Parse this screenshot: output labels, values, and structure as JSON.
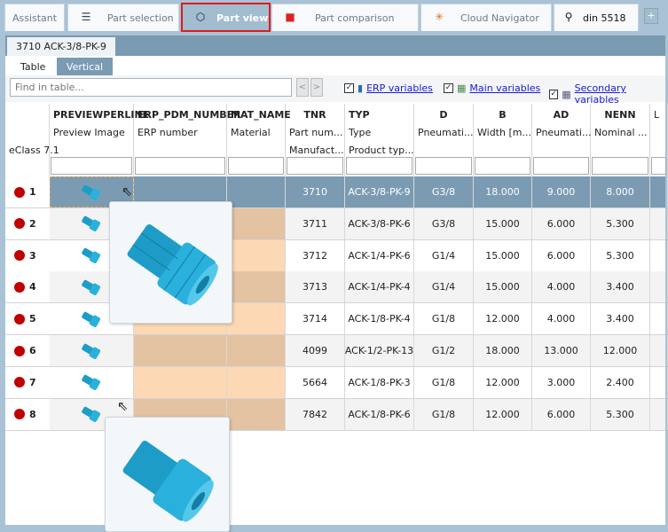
{
  "tabs": [
    {
      "label": "Assistant",
      "icon": "none"
    },
    {
      "label": "Part selection",
      "icon": "stack-icon"
    },
    {
      "label": "Part view",
      "icon": "cubes-icon",
      "active": true
    },
    {
      "label": "Part comparison",
      "icon": "compare-icon"
    },
    {
      "label": "Cloud Navigator",
      "icon": "network-icon"
    },
    {
      "label": "din 5518",
      "icon": "search-abc-icon"
    }
  ],
  "add_tab": "+",
  "part_tab": "3710 ACK-3/8-PK-9",
  "view_tabs": [
    "Table",
    "Vertical"
  ],
  "toolbar": {
    "find_placeholder": "Find in table...",
    "prev": "<",
    "next": ">",
    "erp": "ERP variables",
    "main": "Main variables",
    "secondary": "Secondary variables",
    "check": "✓"
  },
  "columns": [
    {
      "name": "",
      "desc": "",
      "desc2": "eClass 7.1"
    },
    {
      "name": "PREVIEWPERLINE",
      "desc": "Preview Image",
      "desc2": ""
    },
    {
      "name": "ERP_PDM_NUMBER",
      "desc": "ERP number",
      "desc2": ""
    },
    {
      "name": "MAT_NAME",
      "desc": "Material",
      "desc2": ""
    },
    {
      "name": "TNR",
      "desc": "Part num...",
      "desc2": "Manufact..."
    },
    {
      "name": "TYP",
      "desc": "Type",
      "desc2": "Product typ..."
    },
    {
      "name": "D",
      "desc": "Pneumati...",
      "desc2": ""
    },
    {
      "name": "B",
      "desc": "Width [m...",
      "desc2": ""
    },
    {
      "name": "AD",
      "desc": "Pneumati...",
      "desc2": ""
    },
    {
      "name": "NENN",
      "desc": "Nominal ...",
      "desc2": ""
    },
    {
      "name": "",
      "desc": "L",
      "desc2": ""
    }
  ],
  "rows": [
    {
      "n": "1",
      "tnr": "3710",
      "typ": "ACK-3/8-PK-9",
      "d": "G3/8",
      "b": "18.000",
      "ad": "9.000",
      "nenn": "8.000"
    },
    {
      "n": "2",
      "tnr": "3711",
      "typ": "ACK-3/8-PK-6",
      "d": "G3/8",
      "b": "15.000",
      "ad": "6.000",
      "nenn": "5.300"
    },
    {
      "n": "3",
      "tnr": "3712",
      "typ": "ACK-1/4-PK-6",
      "d": "G1/4",
      "b": "15.000",
      "ad": "6.000",
      "nenn": "5.300"
    },
    {
      "n": "4",
      "tnr": "3713",
      "typ": "ACK-1/4-PK-4",
      "d": "G1/4",
      "b": "15.000",
      "ad": "4.000",
      "nenn": "3.400"
    },
    {
      "n": "5",
      "tnr": "3714",
      "typ": "ACK-1/8-PK-4",
      "d": "G1/8",
      "b": "12.000",
      "ad": "4.000",
      "nenn": "3.400"
    },
    {
      "n": "6",
      "tnr": "4099",
      "typ": "ACK-1/2-PK-13",
      "d": "G1/2",
      "b": "18.000",
      "ad": "13.000",
      "nenn": "12.000"
    },
    {
      "n": "7",
      "tnr": "5664",
      "typ": "ACK-1/8-PK-3",
      "d": "G1/8",
      "b": "12.000",
      "ad": "3.000",
      "nenn": "2.400"
    },
    {
      "n": "8",
      "tnr": "7842",
      "typ": "ACK-1/8-PK-6",
      "d": "G1/8",
      "b": "12.000",
      "ad": "6.000",
      "nenn": "5.300"
    }
  ],
  "colors": {
    "selected_row": "#7a9bb2",
    "missing_cell": "#fcd8b4",
    "missing_cell_alt": "#e3c3a2",
    "status_dot": "#c00000",
    "highlight": "#e01b1b",
    "part": "#2aa8d4"
  }
}
